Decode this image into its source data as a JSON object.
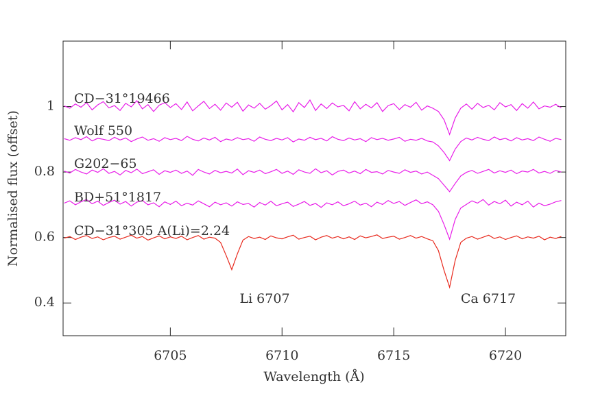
{
  "chart_data": {
    "type": "line",
    "xlabel": "Wavelength (Å)",
    "ylabel": "Normalised flux (offset)",
    "xlim": [
      6700.2,
      6722.7
    ],
    "xticks": [
      6705,
      6710,
      6715,
      6720
    ],
    "ylim": [
      0.3,
      1.2
    ],
    "yticks": [
      0.4,
      0.6,
      0.8,
      1
    ],
    "annotations": [
      {
        "text": "Li 6707"
      },
      {
        "text": "Ca 6717"
      }
    ],
    "x": [
      6700.25,
      6700.5,
      6700.75,
      6701,
      6701.25,
      6701.5,
      6701.75,
      6702,
      6702.25,
      6702.5,
      6702.75,
      6703,
      6703.25,
      6703.5,
      6703.75,
      6704,
      6704.25,
      6704.5,
      6704.75,
      6705,
      6705.25,
      6705.5,
      6705.75,
      6706,
      6706.25,
      6706.5,
      6706.75,
      6707,
      6707.25,
      6707.5,
      6707.75,
      6708,
      6708.25,
      6708.5,
      6708.75,
      6709,
      6709.25,
      6709.5,
      6709.75,
      6710,
      6710.25,
      6710.5,
      6710.75,
      6711,
      6711.25,
      6711.5,
      6711.75,
      6712,
      6712.25,
      6712.5,
      6712.75,
      6713,
      6713.25,
      6713.5,
      6713.75,
      6714,
      6714.25,
      6714.5,
      6714.75,
      6715,
      6715.25,
      6715.5,
      6715.75,
      6716,
      6716.25,
      6716.5,
      6716.75,
      6717,
      6717.25,
      6717.5,
      6717.75,
      6718,
      6718.25,
      6718.5,
      6718.75,
      6719,
      6719.25,
      6719.5,
      6719.75,
      6720,
      6720.25,
      6720.5,
      6720.75,
      6721,
      6721.25,
      6721.5,
      6721.75,
      6722,
      6722.25,
      6722.5
    ],
    "series": [
      {
        "name": "CD−31°19466",
        "color": "#e81ce8",
        "values": [
          1.002,
          0.995,
          1.008,
          0.998,
          1.012,
          0.99,
          1.005,
          1.015,
          0.996,
          1.003,
          0.988,
          1.01,
          0.999,
          1.018,
          0.993,
          1.006,
          0.985,
          1.004,
          1.012,
          0.997,
          1.009,
          0.991,
          1.014,
          0.987,
          1.002,
          1.016,
          0.994,
          1.007,
          0.989,
          1.011,
          0.998,
          1.013,
          0.986,
          1.005,
          0.995,
          1.01,
          0.992,
          1.003,
          1.017,
          0.99,
          1.006,
          0.984,
          1.012,
          0.997,
          1.02,
          0.988,
          1.008,
          0.994,
          1.011,
          0.999,
          1.004,
          0.987,
          1.015,
          0.993,
          1.007,
          0.996,
          1.012,
          0.985,
          1.003,
          1.009,
          0.991,
          1.006,
          0.998,
          1.013,
          0.989,
          1.002,
          0.995,
          0.985,
          0.96,
          0.915,
          0.965,
          0.995,
          1.008,
          0.992,
          1.01,
          0.997,
          1.004,
          0.99,
          1.012,
          0.999,
          1.006,
          0.988,
          1.009,
          0.995,
          1.014,
          0.993,
          1.002,
          0.998,
          1.007,
          0.996
        ]
      },
      {
        "name": "Wolf 550",
        "color": "#e81ce8",
        "values": [
          0.902,
          0.897,
          0.905,
          0.899,
          0.908,
          0.895,
          0.903,
          0.9,
          0.896,
          0.906,
          0.898,
          0.904,
          0.893,
          0.901,
          0.907,
          0.897,
          0.902,
          0.894,
          0.905,
          0.899,
          0.903,
          0.896,
          0.909,
          0.9,
          0.895,
          0.904,
          0.898,
          0.906,
          0.893,
          0.901,
          0.897,
          0.905,
          0.899,
          0.902,
          0.894,
          0.907,
          0.9,
          0.896,
          0.903,
          0.898,
          0.905,
          0.892,
          0.901,
          0.897,
          0.906,
          0.899,
          0.903,
          0.895,
          0.908,
          0.9,
          0.896,
          0.904,
          0.898,
          0.902,
          0.893,
          0.905,
          0.899,
          0.903,
          0.897,
          0.901,
          0.906,
          0.894,
          0.9,
          0.897,
          0.903,
          0.895,
          0.892,
          0.88,
          0.86,
          0.835,
          0.87,
          0.893,
          0.904,
          0.898,
          0.906,
          0.9,
          0.896,
          0.907,
          0.899,
          0.903,
          0.895,
          0.905,
          0.898,
          0.902,
          0.896,
          0.907,
          0.9,
          0.894,
          0.903,
          0.899
        ]
      },
      {
        "name": "G202−65",
        "color": "#e81ce8",
        "values": [
          0.803,
          0.797,
          0.808,
          0.8,
          0.794,
          0.806,
          0.799,
          0.81,
          0.796,
          0.802,
          0.791,
          0.805,
          0.798,
          0.809,
          0.795,
          0.801,
          0.807,
          0.793,
          0.804,
          0.799,
          0.806,
          0.796,
          0.803,
          0.79,
          0.808,
          0.8,
          0.794,
          0.805,
          0.798,
          0.802,
          0.797,
          0.809,
          0.792,
          0.804,
          0.799,
          0.806,
          0.795,
          0.801,
          0.808,
          0.796,
          0.803,
          0.793,
          0.807,
          0.8,
          0.796,
          0.81,
          0.798,
          0.804,
          0.791,
          0.802,
          0.806,
          0.797,
          0.803,
          0.795,
          0.808,
          0.799,
          0.801,
          0.794,
          0.805,
          0.8,
          0.796,
          0.807,
          0.799,
          0.803,
          0.794,
          0.8,
          0.79,
          0.78,
          0.76,
          0.74,
          0.765,
          0.788,
          0.799,
          0.805,
          0.796,
          0.802,
          0.808,
          0.797,
          0.804,
          0.799,
          0.806,
          0.795,
          0.803,
          0.8,
          0.808,
          0.797,
          0.802,
          0.796,
          0.805,
          0.8
        ]
      },
      {
        "name": "BD+51°1817",
        "color": "#e81ce8",
        "values": [
          0.705,
          0.712,
          0.7,
          0.709,
          0.716,
          0.703,
          0.711,
          0.698,
          0.707,
          0.714,
          0.702,
          0.71,
          0.696,
          0.708,
          0.713,
          0.7,
          0.706,
          0.694,
          0.709,
          0.701,
          0.711,
          0.697,
          0.705,
          0.699,
          0.712,
          0.703,
          0.694,
          0.708,
          0.7,
          0.706,
          0.696,
          0.709,
          0.701,
          0.704,
          0.693,
          0.707,
          0.699,
          0.711,
          0.697,
          0.703,
          0.708,
          0.695,
          0.702,
          0.71,
          0.698,
          0.704,
          0.692,
          0.706,
          0.7,
          0.709,
          0.697,
          0.703,
          0.711,
          0.699,
          0.705,
          0.694,
          0.708,
          0.701,
          0.713,
          0.704,
          0.71,
          0.698,
          0.707,
          0.715,
          0.703,
          0.709,
          0.7,
          0.68,
          0.64,
          0.595,
          0.655,
          0.69,
          0.701,
          0.712,
          0.705,
          0.716,
          0.699,
          0.71,
          0.703,
          0.714,
          0.696,
          0.708,
          0.7,
          0.711,
          0.693,
          0.705,
          0.697,
          0.702,
          0.709,
          0.713
        ]
      },
      {
        "name": "CD−31°305 A(Li)=2.24",
        "color": "#e8281c",
        "values": [
          0.598,
          0.603,
          0.594,
          0.601,
          0.606,
          0.597,
          0.602,
          0.593,
          0.6,
          0.604,
          0.595,
          0.601,
          0.607,
          0.598,
          0.603,
          0.592,
          0.599,
          0.605,
          0.596,
          0.602,
          0.597,
          0.604,
          0.593,
          0.6,
          0.606,
          0.595,
          0.601,
          0.598,
          0.585,
          0.545,
          0.502,
          0.55,
          0.592,
          0.603,
          0.597,
          0.601,
          0.594,
          0.605,
          0.599,
          0.596,
          0.602,
          0.607,
          0.595,
          0.6,
          0.604,
          0.593,
          0.601,
          0.606,
          0.598,
          0.603,
          0.596,
          0.602,
          0.594,
          0.605,
          0.599,
          0.603,
          0.608,
          0.597,
          0.601,
          0.604,
          0.595,
          0.6,
          0.606,
          0.598,
          0.603,
          0.596,
          0.59,
          0.56,
          0.5,
          0.448,
          0.53,
          0.585,
          0.598,
          0.603,
          0.595,
          0.601,
          0.607,
          0.597,
          0.602,
          0.594,
          0.6,
          0.605,
          0.596,
          0.602,
          0.598,
          0.604,
          0.593,
          0.601,
          0.597,
          0.603
        ]
      }
    ]
  }
}
